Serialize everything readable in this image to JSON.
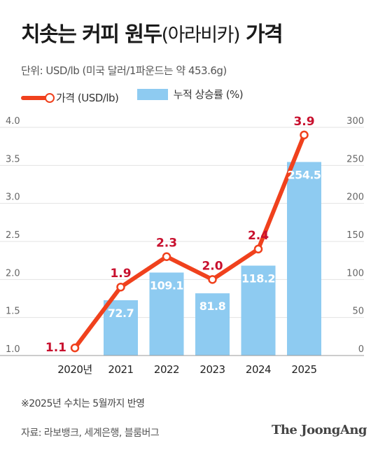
{
  "title_main": "치솟는 커피 원두",
  "title_paren": "(아라비카)",
  "title_end": "가격",
  "unit": "단위: USD/lb (미국 달러/1파운드는 약 453.6g)",
  "legend": {
    "line": "가격 (USD/lb)",
    "bar": "누적 상승률 (%)"
  },
  "note": "※2025년 수치는 5월까지 반영",
  "source": "자료: 라보뱅크, 세계은행, 블룸버그",
  "brand": "The JoongAng",
  "colors": {
    "line": "#f0411d",
    "bar": "#8ecbf1",
    "price_label": "#c8102e"
  },
  "chart_data": {
    "type": "bar+line",
    "categories": [
      "2020년",
      "2021",
      "2022",
      "2023",
      "2024",
      "2025"
    ],
    "series": [
      {
        "name": "가격 (USD/lb)",
        "type": "line",
        "axis": "left",
        "values": [
          1.1,
          1.9,
          2.3,
          2.0,
          2.4,
          3.9
        ],
        "labels": [
          "1.1",
          "1.9",
          "2.3",
          "2.0",
          "2.4",
          "3.9"
        ]
      },
      {
        "name": "누적 상승률 (%)",
        "type": "bar",
        "axis": "right",
        "values": [
          null,
          72.7,
          109.1,
          81.8,
          118.2,
          254.5
        ],
        "labels": [
          "",
          "72.7",
          "109.1",
          "81.8",
          "118.2",
          "254.5"
        ]
      }
    ],
    "left_axis": {
      "range": [
        1.0,
        4.0
      ],
      "ticks": [
        "1.0",
        "1.5",
        "2.0",
        "2.5",
        "3.0",
        "3.5",
        "4.0"
      ]
    },
    "right_axis": {
      "range": [
        0,
        300
      ],
      "ticks": [
        "0",
        "50",
        "100",
        "150",
        "200",
        "250",
        "300"
      ]
    },
    "grid": true,
    "legend_position": "top-left"
  }
}
